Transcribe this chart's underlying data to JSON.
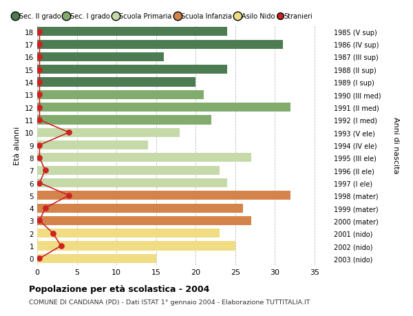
{
  "ages": [
    18,
    17,
    16,
    15,
    14,
    13,
    12,
    11,
    10,
    9,
    8,
    7,
    6,
    5,
    4,
    3,
    2,
    1,
    0
  ],
  "bar_values": [
    24,
    31,
    16,
    24,
    20,
    21,
    32,
    22,
    18,
    14,
    27,
    23,
    24,
    32,
    26,
    27,
    23,
    25,
    15
  ],
  "bar_colors": [
    "#4d7c52",
    "#4d7c52",
    "#4d7c52",
    "#4d7c52",
    "#4d7c52",
    "#82ab6e",
    "#82ab6e",
    "#82ab6e",
    "#c5daa8",
    "#c5daa8",
    "#c5daa8",
    "#c5daa8",
    "#c5daa8",
    "#d4834a",
    "#d4834a",
    "#d4834a",
    "#f0dc82",
    "#f0dc82",
    "#f0dc82"
  ],
  "stranieri_values": [
    0.3,
    0.3,
    0.3,
    0.3,
    0.3,
    0.3,
    0.3,
    0.3,
    4,
    0.3,
    0.3,
    1,
    0.3,
    4,
    1,
    0.3,
    2,
    3,
    0.3
  ],
  "right_labels": [
    "1985 (V sup)",
    "1986 (IV sup)",
    "1987 (III sup)",
    "1988 (II sup)",
    "1989 (I sup)",
    "1990 (III med)",
    "1991 (II med)",
    "1992 (I med)",
    "1993 (V ele)",
    "1994 (IV ele)",
    "1995 (III ele)",
    "1996 (II ele)",
    "1997 (I ele)",
    "1998 (mater)",
    "1999 (mater)",
    "2000 (mater)",
    "2001 (nido)",
    "2002 (nido)",
    "2003 (nido)"
  ],
  "legend_labels": [
    "Sec. II grado",
    "Sec. I grado",
    "Scuola Primaria",
    "Scuola Infanzia",
    "Asilo Nido",
    "Stranieri"
  ],
  "legend_colors": [
    "#4d7c52",
    "#82ab6e",
    "#c5daa8",
    "#d4834a",
    "#f0dc82",
    "#cc2222"
  ],
  "ylabel_left": "Età alunni",
  "ylabel_right": "Anni di nascita",
  "title": "Popolazione per età scolastica - 2004",
  "subtitle": "COMUNE DI CANDIANA (PD) - Dati ISTAT 1° gennaio 2004 - Elaborazione TUTTITALIA.IT",
  "xlim": [
    0,
    37
  ],
  "ylim_min": -0.55,
  "ylim_max": 18.55,
  "background_color": "#ffffff",
  "bar_height": 0.72,
  "grid_color": "#bbbbbb",
  "stranieri_color": "#cc2222",
  "stranieri_dot_size": 28
}
